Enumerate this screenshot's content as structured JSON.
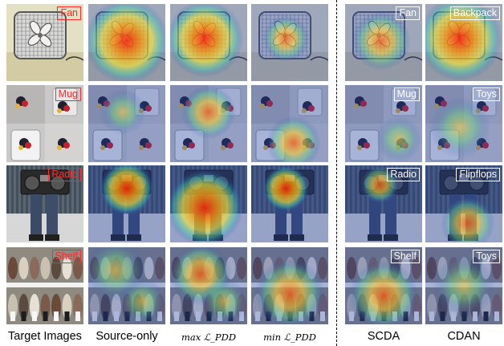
{
  "figure": {
    "columns": [
      {
        "key": "target",
        "caption": "Target Images"
      },
      {
        "key": "source",
        "caption": "Source-only"
      },
      {
        "key": "max",
        "caption": "max ℒ_PDD"
      },
      {
        "key": "min",
        "caption": "min ℒ_PDD"
      },
      {
        "key": "scda",
        "caption": "SCDA"
      },
      {
        "key": "cdan",
        "caption": "CDAN"
      }
    ],
    "rows": [
      {
        "scene": "fan",
        "labels": {
          "target": "Fan",
          "scda": "Fan",
          "cdan": "Backpack"
        }
      },
      {
        "scene": "mug",
        "labels": {
          "target": "Mug",
          "scda": "Mug",
          "cdan": "Toys"
        }
      },
      {
        "scene": "radio",
        "labels": {
          "target": "Radio",
          "scda": "Radio",
          "cdan": "Flipflops"
        }
      },
      {
        "scene": "shelf",
        "labels": {
          "target": "Shelf",
          "scda": "Shelf",
          "cdan": "Toys"
        }
      }
    ]
  }
}
